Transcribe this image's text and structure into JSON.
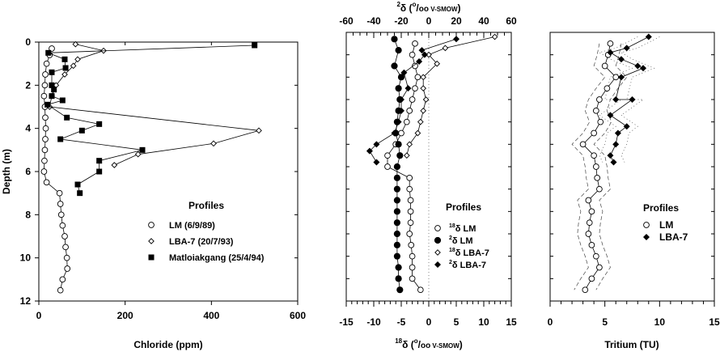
{
  "chart_data": [
    {
      "type": "scatter",
      "panel": "chloride",
      "xlabel": "Chloride (ppm)",
      "ylabel": "Depth (m)",
      "xlim": [
        0,
        600
      ],
      "ylim": [
        0,
        12
      ],
      "y_inverted": true,
      "x_ticks": [
        "0",
        "200",
        "400",
        "600"
      ],
      "y_ticks": [
        "0",
        "2",
        "4",
        "6",
        "8",
        "10",
        "12"
      ],
      "legend_title": "Profiles",
      "legend_position": "bottom-right",
      "series": [
        {
          "name": "LM (6/9/89)",
          "marker": "open-circle",
          "points": [
            [
              30,
              0.3
            ],
            [
              25,
              0.6
            ],
            [
              18,
              1.0
            ],
            [
              15,
              1.5
            ],
            [
              14,
              2.0
            ],
            [
              12,
              2.5
            ],
            [
              14,
              3.0
            ],
            [
              15,
              3.5
            ],
            [
              16,
              4.0
            ],
            [
              15,
              4.5
            ],
            [
              14,
              5.0
            ],
            [
              13,
              5.5
            ],
            [
              12,
              6.0
            ],
            [
              18,
              6.5
            ],
            [
              48,
              7.0
            ],
            [
              50,
              7.5
            ],
            [
              52,
              8.0
            ],
            [
              55,
              8.5
            ],
            [
              60,
              9.0
            ],
            [
              62,
              9.5
            ],
            [
              65,
              10.0
            ],
            [
              66,
              10.5
            ],
            [
              55,
              11.0
            ],
            [
              50,
              11.5
            ]
          ]
        },
        {
          "name": "LBA-7 (20/7/93)",
          "marker": "open-diamond",
          "points": [
            [
              85,
              0.1
            ],
            [
              150,
              0.4
            ],
            [
              90,
              0.8
            ],
            [
              80,
              1.1
            ],
            [
              60,
              1.5
            ],
            [
              40,
              2.0
            ],
            [
              30,
              2.5
            ],
            [
              25,
              3.0
            ],
            [
              510,
              4.1
            ],
            [
              405,
              4.7
            ],
            [
              230,
              5.2
            ],
            [
              175,
              5.7
            ]
          ]
        },
        {
          "name": "Matloiakgang (25/4/94)",
          "marker": "filled-square",
          "points": [
            [
              500,
              0.15
            ],
            [
              22,
              0.5
            ],
            [
              60,
              0.8
            ],
            [
              62,
              1.2
            ],
            [
              30,
              1.4
            ],
            [
              30,
              2.0
            ],
            [
              35,
              2.2
            ],
            [
              30,
              2.5
            ],
            [
              55,
              2.7
            ],
            [
              20,
              2.9
            ],
            [
              65,
              3.5
            ],
            [
              140,
              3.8
            ],
            [
              100,
              4.1
            ],
            [
              50,
              4.5
            ],
            [
              240,
              5.0
            ],
            [
              140,
              5.5
            ],
            [
              140,
              6.0
            ],
            [
              90,
              6.6
            ],
            [
              95,
              7.0
            ]
          ]
        }
      ]
    },
    {
      "type": "scatter",
      "panel": "isotopes",
      "xlabel": "¹⁸δ (⁰/₀₀ V-SMOW)",
      "x2label": "²δ (⁰/₀₀ V-SMOW)",
      "xlim": [
        -15,
        15
      ],
      "x2lim": [
        -60,
        60
      ],
      "ylim": [
        0,
        12
      ],
      "y_inverted": true,
      "x_ticks": [
        "-15",
        "-10",
        "-5",
        "0",
        "5",
        "10",
        "15"
      ],
      "x2_ticks": [
        "-60",
        "-40",
        "-20",
        "0",
        "20",
        "40",
        "60"
      ],
      "zero_line": true,
      "legend_title": "Profiles",
      "legend_position": "bottom-right",
      "legend_entries": [
        {
          "pre": "18",
          "sym": "δ",
          "name": "LM"
        },
        {
          "pre": "2",
          "sym": "δ",
          "name": "LM"
        },
        {
          "pre": "18",
          "sym": "δ",
          "name": "LBA-7"
        },
        {
          "pre": "2",
          "sym": "δ",
          "name": "LBA-7"
        }
      ],
      "series": [
        {
          "name": "18δ LM",
          "axis": "bottom",
          "marker": "open-circle",
          "points": [
            [
              -2.5,
              0.5
            ],
            [
              -3.0,
              1.0
            ],
            [
              -2.5,
              1.5
            ],
            [
              -2.0,
              2.0
            ],
            [
              -2.5,
              2.5
            ],
            [
              -3.0,
              3.0
            ],
            [
              -3.5,
              3.5
            ],
            [
              -4.0,
              4.0
            ],
            [
              -5.0,
              4.5
            ],
            [
              -6.0,
              5.0
            ],
            [
              -7.5,
              5.5
            ],
            [
              -7.5,
              6.0
            ],
            [
              -3.5,
              6.5
            ],
            [
              -3.5,
              7.0
            ],
            [
              -3.3,
              7.5
            ],
            [
              -3.3,
              8.0
            ],
            [
              -3.3,
              8.5
            ],
            [
              -3.5,
              9.0
            ],
            [
              -3.2,
              9.5
            ],
            [
              -3.0,
              10.0
            ],
            [
              -3.0,
              10.5
            ],
            [
              -3.0,
              11.0
            ],
            [
              -1.5,
              11.5
            ]
          ]
        },
        {
          "name": "2δ LM",
          "axis": "top",
          "marker": "filled-circle",
          "points": [
            [
              -25,
              0.3
            ],
            [
              -22,
              0.8
            ],
            [
              -25,
              1.5
            ],
            [
              -20,
              2.0
            ],
            [
              -22,
              2.5
            ],
            [
              -21,
              3.0
            ],
            [
              -22,
              3.5
            ],
            [
              -23,
              4.0
            ],
            [
              -24,
              4.5
            ],
            [
              -22,
              5.0
            ],
            [
              -21,
              5.5
            ],
            [
              -23,
              6.0
            ],
            [
              -23,
              6.5
            ],
            [
              -23,
              7.0
            ],
            [
              -23,
              7.5
            ],
            [
              -23,
              8.0
            ],
            [
              -23,
              8.5
            ],
            [
              -23,
              9.0
            ],
            [
              -23,
              9.5
            ],
            [
              -23,
              10.0
            ],
            [
              -22,
              10.5
            ],
            [
              -22,
              11.0
            ],
            [
              -21,
              11.5
            ]
          ]
        },
        {
          "name": "18δ LBA-7",
          "axis": "bottom",
          "marker": "open-diamond",
          "points": [
            [
              12,
              0.2
            ],
            [
              3,
              0.7
            ],
            [
              0,
              1.0
            ],
            [
              1.5,
              1.4
            ],
            [
              -1,
              2.0
            ],
            [
              -1,
              2.5
            ],
            [
              -0.5,
              3.0
            ],
            [
              -1,
              3.5
            ],
            [
              -1.5,
              4.0
            ],
            [
              -2,
              4.5
            ],
            [
              -3.5,
              5.0
            ],
            [
              -4.0,
              5.5
            ]
          ]
        },
        {
          "name": "2δ LBA-7",
          "axis": "top",
          "marker": "filled-diamond",
          "points": [
            [
              20,
              0.3
            ],
            [
              -5,
              0.8
            ],
            [
              -3,
              1.0
            ],
            [
              -7,
              1.3
            ],
            [
              -18,
              1.8
            ],
            [
              -15,
              2.5
            ],
            [
              -20,
              3.0
            ],
            [
              -20,
              3.5
            ],
            [
              -22,
              4.0
            ],
            [
              -25,
              4.5
            ],
            [
              -38,
              5.0
            ],
            [
              -43,
              5.3
            ],
            [
              -38,
              5.8
            ]
          ]
        }
      ]
    },
    {
      "type": "scatter",
      "panel": "tritium",
      "xlabel": "Tritium (TU)",
      "xlim": [
        0,
        15
      ],
      "ylim": [
        0,
        12
      ],
      "y_inverted": true,
      "x_ticks": [
        "0",
        "5",
        "10",
        "15"
      ],
      "legend_title": "Profiles",
      "legend_position": "bottom-right",
      "series": [
        {
          "name": "LM",
          "marker": "open-circle",
          "error_band": 1.0,
          "points": [
            [
              5.5,
              0.5
            ],
            [
              5.3,
              1.0
            ],
            [
              5.0,
              1.5
            ],
            [
              6.0,
              2.0
            ],
            [
              5.2,
              2.5
            ],
            [
              4.5,
              3.0
            ],
            [
              4.2,
              3.5
            ],
            [
              4.6,
              4.0
            ],
            [
              4.0,
              4.5
            ],
            [
              3.0,
              5.0
            ],
            [
              4.0,
              5.5
            ],
            [
              4.2,
              6.0
            ],
            [
              4.3,
              6.5
            ],
            [
              4.5,
              7.0
            ],
            [
              3.5,
              7.5
            ],
            [
              3.8,
              8.0
            ],
            [
              3.6,
              8.5
            ],
            [
              3.5,
              9.0
            ],
            [
              3.8,
              9.5
            ],
            [
              4.2,
              10.0
            ],
            [
              4.5,
              10.5
            ],
            [
              3.8,
              11.0
            ],
            [
              3.2,
              11.5
            ]
          ]
        },
        {
          "name": "LBA-7",
          "marker": "filled-diamond",
          "error_band": 1.0,
          "points": [
            [
              9.0,
              0.2
            ],
            [
              7.0,
              0.7
            ],
            [
              5.5,
              0.9
            ],
            [
              6.5,
              1.2
            ],
            [
              8.0,
              1.5
            ],
            [
              8.5,
              1.6
            ],
            [
              6.5,
              2.0
            ],
            [
              6.0,
              3.0
            ],
            [
              7.5,
              3.0
            ],
            [
              5.5,
              3.7
            ],
            [
              7.0,
              4.2
            ],
            [
              6.2,
              4.5
            ],
            [
              6.0,
              5.0
            ],
            [
              5.5,
              5.5
            ],
            [
              5.8,
              5.8
            ]
          ]
        }
      ]
    }
  ]
}
